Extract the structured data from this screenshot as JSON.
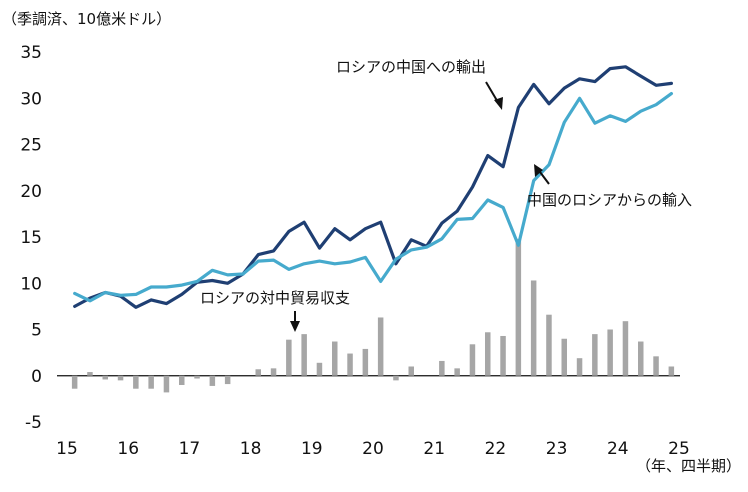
{
  "chart_data": {
    "type": "bar+line",
    "unit_label": "（季調済、10億米ドル）",
    "x_unit_label": "（年、四半期）",
    "ylim": [
      -5,
      35
    ],
    "yticks": [
      -5,
      0,
      5,
      10,
      15,
      20,
      25,
      30,
      35
    ],
    "x_tick_labels": [
      "15",
      "16",
      "17",
      "18",
      "19",
      "20",
      "21",
      "22",
      "23",
      "24",
      "25"
    ],
    "grid": false,
    "series": [
      {
        "name": "ロシアの中国への輸出",
        "type": "line",
        "color": "#1f3f73",
        "values": [
          7.5,
          8.4,
          9.0,
          8.6,
          7.4,
          8.2,
          7.8,
          8.8,
          10.1,
          10.3,
          10.0,
          11.0,
          13.1,
          13.5,
          15.6,
          16.6,
          13.8,
          15.9,
          14.7,
          15.9,
          16.6,
          12.1,
          14.7,
          14.0,
          16.5,
          17.8,
          20.4,
          23.8,
          22.6,
          29.0,
          31.5,
          29.4,
          31.1,
          32.1,
          31.8,
          33.2,
          33.4,
          32.4,
          31.4,
          31.6
        ]
      },
      {
        "name": "中国のロシアからの輸入",
        "type": "line",
        "color": "#46aacd",
        "values": [
          8.9,
          8.1,
          9.0,
          8.7,
          8.8,
          9.6,
          9.6,
          9.8,
          10.2,
          11.4,
          10.9,
          11.0,
          12.4,
          12.5,
          11.5,
          12.1,
          12.4,
          12.1,
          12.3,
          12.8,
          10.2,
          12.6,
          13.6,
          13.9,
          14.8,
          16.9,
          17.0,
          19.0,
          18.2,
          14.1,
          21.1,
          22.8,
          27.4,
          30.0,
          27.3,
          28.1,
          27.5,
          28.6,
          29.3,
          30.5
        ]
      },
      {
        "name": "ロシアの対中貿易収支",
        "type": "bar",
        "color": "#a6a6a6",
        "values": [
          -1.4,
          0.4,
          -0.4,
          -0.5,
          -1.4,
          -1.4,
          -1.8,
          -1.0,
          -0.3,
          -1.1,
          -0.9,
          0.0,
          0.7,
          0.8,
          3.9,
          4.5,
          1.4,
          3.7,
          2.4,
          2.9,
          6.3,
          -0.5,
          1.0,
          0.0,
          1.6,
          0.8,
          3.4,
          4.7,
          4.3,
          14.8,
          10.3,
          6.6,
          4.0,
          1.9,
          4.5,
          5.0,
          5.9,
          3.7,
          2.1,
          1.0
        ]
      }
    ],
    "annotations": {
      "export": "ロシアの中国への輸出",
      "import": "中国のロシアからの輸入",
      "balance": "ロシアの対中貿易収支"
    }
  }
}
